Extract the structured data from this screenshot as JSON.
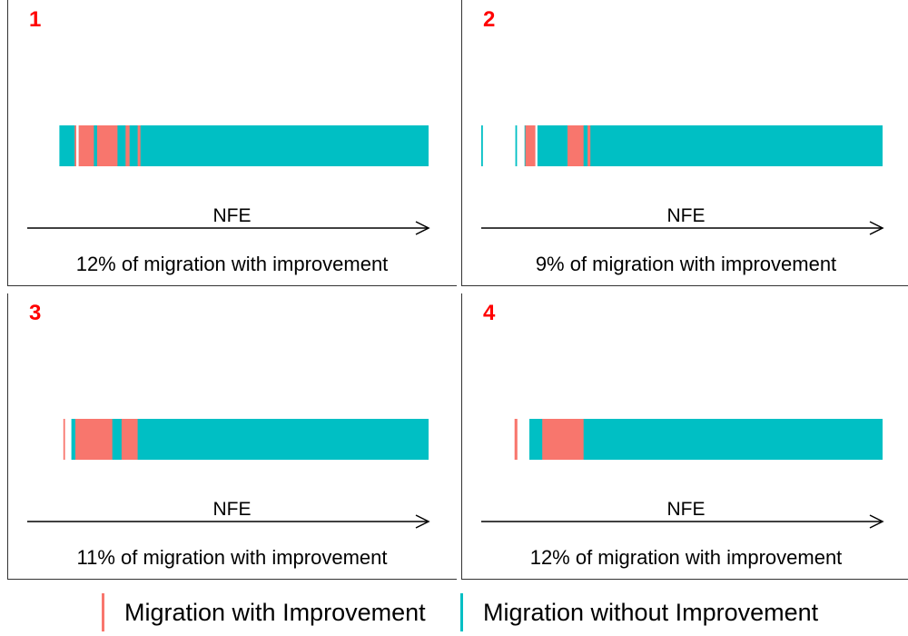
{
  "colors": {
    "with_improvement": "#F8766D",
    "without_improvement": "#00BFC4",
    "panel_id": "#FF0000"
  },
  "legend": {
    "with_label": "Migration with Improvement",
    "without_label": "Migration without Improvement"
  },
  "chart_data": [
    {
      "type": "strip",
      "panel": "1",
      "xlabel": "NFE",
      "caption": "12% of migration with improvement",
      "percent_with_improvement": 12,
      "xlim": [
        0,
        1
      ],
      "series": [
        {
          "name": "Migration without Improvement",
          "intervals": [
            [
              0.08,
              0.12
            ],
            [
              0.16,
              0.21
            ],
            [
              0.22,
              1.0
            ]
          ]
        },
        {
          "name": "Migration with Improvement",
          "intervals": [
            [
              0.118,
              0.122
            ],
            [
              0.128,
              0.166
            ],
            [
              0.174,
              0.225
            ],
            [
              0.245,
              0.255
            ],
            [
              0.275,
              0.282
            ]
          ]
        }
      ]
    },
    {
      "type": "strip",
      "panel": "2",
      "xlabel": "NFE",
      "caption": "9% of migration with improvement",
      "percent_with_improvement": 9,
      "xlim": [
        0,
        1
      ],
      "series": [
        {
          "name": "Migration without Improvement",
          "intervals": [
            [
              0.0,
              0.004
            ],
            [
              0.085,
              0.089
            ],
            [
              0.108,
              0.114
            ],
            [
              0.14,
              1.0
            ]
          ]
        },
        {
          "name": "Migration with Improvement",
          "intervals": [
            [
              0.11,
              0.135
            ],
            [
              0.215,
              0.255
            ],
            [
              0.265,
              0.272
            ]
          ]
        }
      ]
    },
    {
      "type": "strip",
      "panel": "3",
      "xlabel": "NFE",
      "caption": "11% of migration with improvement",
      "percent_with_improvement": 11,
      "xlim": [
        0,
        1
      ],
      "series": [
        {
          "name": "Migration without Improvement",
          "intervals": [
            [
              0.11,
              0.12
            ],
            [
              0.19,
              1.0
            ]
          ]
        },
        {
          "name": "Migration with Improvement",
          "intervals": [
            [
              0.09,
              0.094
            ],
            [
              0.12,
              0.212
            ],
            [
              0.235,
              0.275
            ]
          ]
        }
      ]
    },
    {
      "type": "strip",
      "panel": "4",
      "xlabel": "NFE",
      "caption": "12% of migration with improvement",
      "percent_with_improvement": 12,
      "xlim": [
        0,
        1
      ],
      "series": [
        {
          "name": "Migration without Improvement",
          "intervals": [
            [
              0.12,
              1.0
            ]
          ]
        },
        {
          "name": "Migration with Improvement",
          "intervals": [
            [
              0.083,
              0.09
            ],
            [
              0.152,
              0.255
            ]
          ]
        }
      ]
    }
  ]
}
